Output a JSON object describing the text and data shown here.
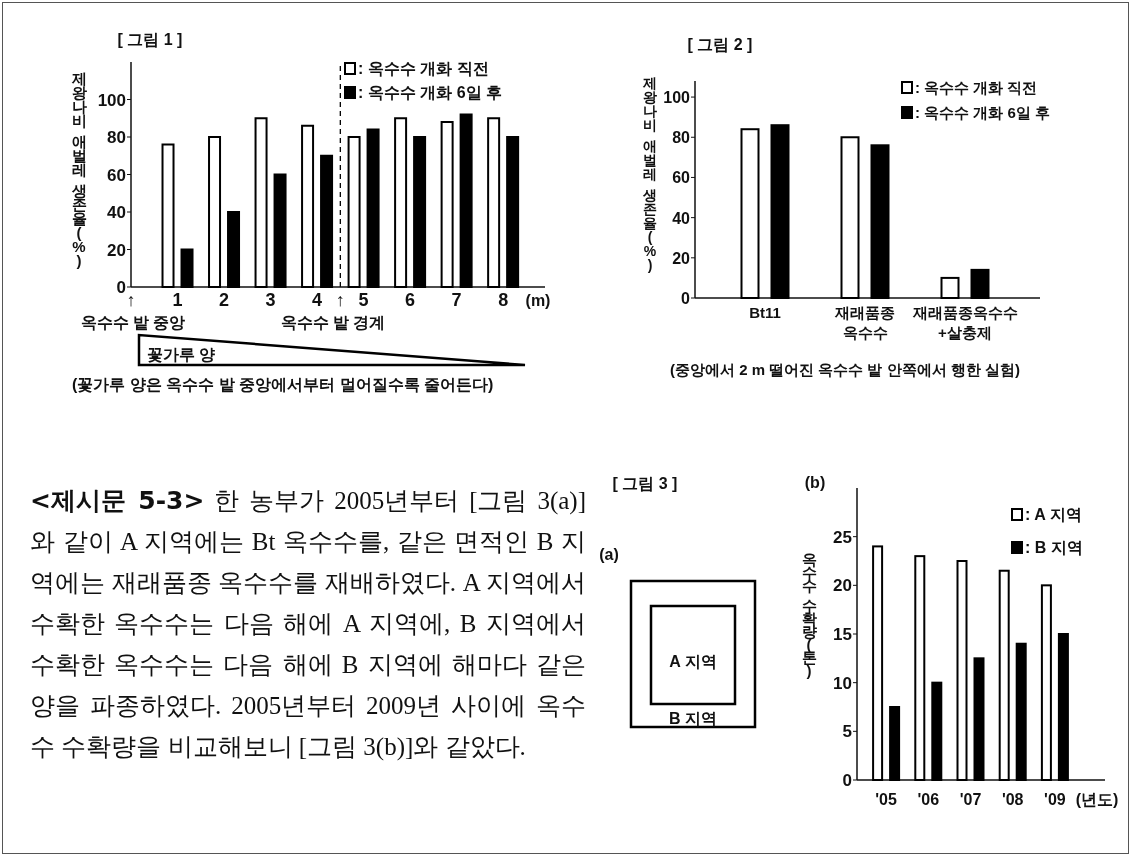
{
  "chart_data": [
    {
      "type": "bar",
      "title": "[ 그림 1 ]",
      "ylabel": "제왕나비 애벌레 생존율(%)",
      "xlabel": "(m)",
      "x": [
        1,
        2,
        3,
        4,
        5,
        6,
        7,
        8
      ],
      "xlim": [
        0,
        8.9
      ],
      "xticks": [
        {
          "value": 0,
          "label": "↑"
        },
        1,
        2,
        3,
        4,
        {
          "value": 4.5,
          "label": "↑"
        },
        5,
        6,
        7,
        8
      ],
      "ylim": [
        0,
        120
      ],
      "yticks": [
        0,
        20,
        40,
        60,
        80,
        100
      ],
      "legend": "top right",
      "series": [
        {
          "name": ": 옥수수 개화 직전",
          "color": "#ffffff",
          "values": [
            76,
            80,
            90,
            86,
            80,
            90,
            88,
            90
          ]
        },
        {
          "name": ": 옥수수 개화 6일 후",
          "color": "#000000",
          "values": [
            20,
            40,
            60,
            70,
            84,
            80,
            92,
            80
          ]
        }
      ],
      "ref_lines": [
        {
          "axis": "x",
          "value": 4.5,
          "line_style": "dashed",
          "color": "#000000"
        }
      ],
      "annotations": [
        "옥수수 밭 중앙",
        "옥수수 밭 경계",
        "꽃가루 양",
        "(꽃가루 양은 옥수수 밭 중앙에서부터 멀어질수록 줄어든다)"
      ]
    },
    {
      "type": "bar",
      "title": "[ 그림 2 ]",
      "ylabel": "제왕나비 애벌레 생존율(%)",
      "categories": [
        "Bt11",
        "재래품종 옥수수",
        "재래품종옥수수 +살충제"
      ],
      "ylim": [
        0,
        108
      ],
      "yticks": [
        0,
        20,
        40,
        60,
        80,
        100
      ],
      "legend": "top right",
      "series": [
        {
          "name": ": 옥수수 개화 직전",
          "color": "#ffffff",
          "values": [
            84,
            80,
            10
          ]
        },
        {
          "name": ": 옥수수 개화 6일 후",
          "color": "#000000",
          "values": [
            86,
            76,
            14
          ]
        }
      ],
      "annotations": [
        "(중앙에서 2 m 떨어진 옥수수 밭 안쪽에서 행한 실험)"
      ]
    },
    {
      "type": "other",
      "annotations": [
        "<제시문 5-3>",
        "한 농부가 2005년부터 [그림 3(a)]와 같이 A 지역에는 Bt 옥수수를, 같은 면적인 B 지역에는 재래품종 옥수수를 재배하였다. A 지역에서 수확한 옥수수는 다음 해에 A 지역에, B 지역에서 수확한 옥수수는 다음 해에 B 지역에 해마다 같은 양을 파종하였다. 2005년부터 2009년 사이에 옥수수 수확량을 비교해보니 [그림 3(b)]와 같았다."
      ]
    },
    {
      "type": "other",
      "title": "[ 그림 3 ]",
      "annotations": [
        "(a)",
        "A 지역",
        "B 지역"
      ]
    },
    {
      "type": "bar",
      "title": "(b)",
      "ylabel": "옥수수 수확량(톤)",
      "xlabel": "(년도)",
      "categories": [
        "'05",
        "'06",
        "'07",
        "'08",
        "'09"
      ],
      "ylim": [
        0,
        30
      ],
      "yticks": [
        0,
        5,
        10,
        15,
        20,
        25
      ],
      "legend": "top right",
      "series": [
        {
          "name": ": A 지역",
          "color": "#ffffff",
          "values": [
            24,
            23,
            22.5,
            21.5,
            20
          ]
        },
        {
          "name": ": B 지역",
          "color": "#000000",
          "values": [
            7.5,
            10,
            12.5,
            14,
            15
          ]
        }
      ]
    }
  ]
}
